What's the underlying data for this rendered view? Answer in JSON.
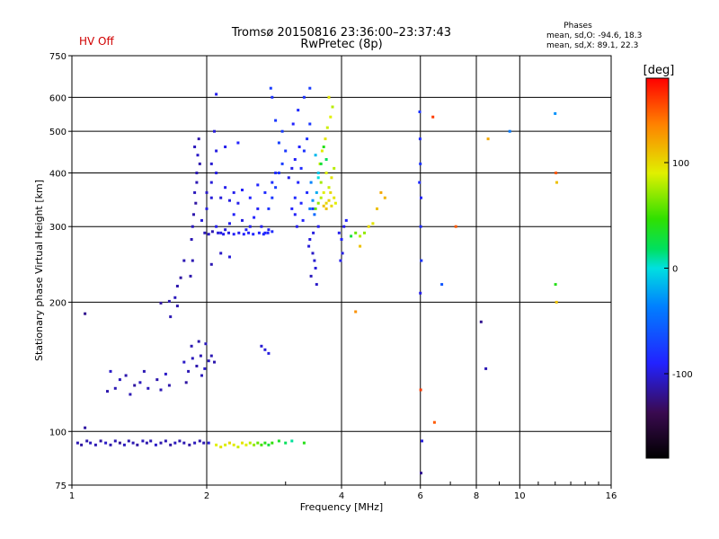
{
  "status": {
    "hv_text": "HV Off",
    "hv_color": "#d00000"
  },
  "header": {
    "title_line1": "Tromsø 20150816 23:36:00–23:37:43",
    "title_line2": "RwPretec (8p)"
  },
  "stats": {
    "heading": "Phases",
    "line_o": "mean, sd,O: -94.6, 18.3",
    "line_x": "mean, sd,X:  89.1, 22.3"
  },
  "colorbar": {
    "title": "[deg]",
    "ticks": [
      {
        "value": 100,
        "label": "100"
      },
      {
        "value": 0,
        "label": "0"
      },
      {
        "value": -100,
        "label": "-100"
      }
    ],
    "range": [
      -180,
      180
    ]
  },
  "chart_data": {
    "type": "scatter",
    "title": "Tromsø 20150816 23:36:00–23:37:43",
    "subtitle": "RwPretec (8p)",
    "xlabel": "Frequency [MHz]",
    "ylabel": "Stationary phase Virtual Height [km]",
    "x_scale": "log",
    "y_scale": "log",
    "xlim": [
      1,
      16
    ],
    "ylim": [
      75,
      750
    ],
    "grid": true,
    "x_ticks": [
      {
        "value": 1,
        "label": "1"
      },
      {
        "value": 2,
        "label": "2"
      },
      {
        "value": 4,
        "label": "4"
      },
      {
        "value": 6,
        "label": "6"
      },
      {
        "value": 8,
        "label": "8"
      },
      {
        "value": 10,
        "label": "10"
      },
      {
        "value": 16,
        "label": "16"
      }
    ],
    "y_ticks": [
      {
        "value": 75,
        "label": "75"
      },
      {
        "value": 100,
        "label": "100"
      },
      {
        "value": 200,
        "label": "200"
      },
      {
        "value": 300,
        "label": "300"
      },
      {
        "value": 400,
        "label": "400"
      },
      {
        "value": 500,
        "label": "500"
      },
      {
        "value": 600,
        "label": "600"
      },
      {
        "value": 750,
        "label": "750"
      }
    ],
    "color_by": "phase [deg]",
    "points": [
      [
        1.03,
        94,
        -110
      ],
      [
        1.05,
        93,
        -115
      ],
      [
        1.08,
        95,
        -112
      ],
      [
        1.1,
        94,
        -108
      ],
      [
        1.13,
        93,
        -110
      ],
      [
        1.16,
        95,
        -115
      ],
      [
        1.19,
        94,
        -105
      ],
      [
        1.22,
        93,
        -112
      ],
      [
        1.25,
        95,
        -110
      ],
      [
        1.28,
        94,
        -118
      ],
      [
        1.31,
        93,
        -108
      ],
      [
        1.34,
        95,
        -112
      ],
      [
        1.37,
        94,
        -110
      ],
      [
        1.4,
        93,
        -115
      ],
      [
        1.44,
        95,
        -108
      ],
      [
        1.47,
        94,
        -112
      ],
      [
        1.5,
        95,
        -110
      ],
      [
        1.54,
        93,
        -105
      ],
      [
        1.58,
        94,
        -112
      ],
      [
        1.62,
        95,
        -110
      ],
      [
        1.66,
        93,
        -115
      ],
      [
        1.7,
        94,
        -108
      ],
      [
        1.74,
        95,
        -112
      ],
      [
        1.78,
        94,
        -110
      ],
      [
        1.83,
        93,
        -115
      ],
      [
        1.88,
        94,
        -108
      ],
      [
        1.93,
        95,
        -112
      ],
      [
        1.97,
        94,
        -110
      ],
      [
        2.02,
        94,
        -100
      ],
      [
        1.07,
        102,
        -115
      ],
      [
        1.07,
        188,
        -120
      ],
      [
        1.22,
        138,
        -105
      ],
      [
        1.25,
        126,
        -110
      ],
      [
        1.28,
        132,
        -108
      ],
      [
        1.32,
        135,
        -112
      ],
      [
        1.35,
        122,
        -110
      ],
      [
        1.38,
        128,
        -115
      ],
      [
        1.42,
        130,
        -108
      ],
      [
        1.45,
        138,
        -110
      ],
      [
        1.2,
        124,
        -112
      ],
      [
        1.48,
        126,
        -108
      ],
      [
        1.55,
        132,
        -112
      ],
      [
        1.58,
        125,
        -110
      ],
      [
        1.62,
        136,
        -105
      ],
      [
        1.65,
        128,
        -112
      ],
      [
        1.58,
        199,
        -115
      ],
      [
        1.65,
        201,
        -110
      ],
      [
        1.7,
        205,
        -108
      ],
      [
        1.72,
        218,
        -112
      ],
      [
        1.75,
        228,
        -115
      ],
      [
        1.78,
        250,
        -110
      ],
      [
        1.66,
        185,
        -110
      ],
      [
        1.72,
        196,
        -112
      ],
      [
        1.78,
        145,
        -105
      ],
      [
        1.82,
        138,
        -110
      ],
      [
        1.86,
        148,
        -108
      ],
      [
        1.9,
        142,
        -112
      ],
      [
        1.94,
        150,
        -110
      ],
      [
        1.98,
        140,
        -105
      ],
      [
        2.02,
        146,
        -108
      ],
      [
        1.85,
        158,
        -110
      ],
      [
        1.92,
        162,
        -112
      ],
      [
        1.99,
        160,
        -108
      ],
      [
        2.05,
        150,
        -110
      ],
      [
        2.08,
        145,
        -112
      ],
      [
        1.8,
        130,
        -115
      ],
      [
        1.95,
        135,
        -108
      ],
      [
        1.85,
        280,
        -110
      ],
      [
        1.87,
        320,
        -112
      ],
      [
        1.88,
        360,
        -108
      ],
      [
        1.9,
        400,
        -110
      ],
      [
        1.91,
        440,
        -105
      ],
      [
        1.92,
        480,
        -112
      ],
      [
        1.86,
        300,
        -108
      ],
      [
        1.89,
        340,
        -115
      ],
      [
        1.9,
        380,
        -110
      ],
      [
        1.93,
        420,
        -112
      ],
      [
        1.88,
        460,
        -108
      ],
      [
        1.86,
        250,
        -110
      ],
      [
        1.84,
        230,
        -112
      ],
      [
        1.95,
        310,
        -100
      ],
      [
        2.0,
        330,
        -98
      ],
      [
        2.05,
        350,
        -100
      ],
      [
        2.1,
        300,
        -95
      ],
      [
        2.15,
        290,
        -98
      ],
      [
        2.2,
        295,
        -100
      ],
      [
        2.25,
        305,
        -95
      ],
      [
        2.3,
        320,
        -92
      ],
      [
        2.35,
        340,
        -95
      ],
      [
        2.4,
        310,
        -98
      ],
      [
        2.45,
        295,
        -92
      ],
      [
        2.5,
        300,
        -95
      ],
      [
        2.55,
        315,
        -90
      ],
      [
        2.6,
        330,
        -92
      ],
      [
        2.65,
        300,
        -95
      ],
      [
        2.7,
        290,
        -90
      ],
      [
        2.75,
        295,
        -92
      ],
      [
        2.0,
        360,
        -105
      ],
      [
        2.05,
        380,
        -100
      ],
      [
        2.1,
        400,
        -98
      ],
      [
        2.15,
        350,
        -100
      ],
      [
        2.2,
        370,
        -95
      ],
      [
        2.25,
        345,
        -98
      ],
      [
        2.3,
        360,
        -95
      ],
      [
        2.4,
        365,
        -92
      ],
      [
        2.5,
        350,
        -90
      ],
      [
        2.6,
        375,
        -88
      ],
      [
        2.7,
        360,
        -85
      ],
      [
        2.8,
        380,
        -82
      ],
      [
        2.85,
        400,
        -85
      ],
      [
        1.98,
        290,
        -108
      ],
      [
        2.02,
        288,
        -105
      ],
      [
        2.06,
        292,
        -110
      ],
      [
        2.12,
        290,
        -100
      ],
      [
        2.18,
        288,
        -95
      ],
      [
        2.24,
        290,
        -98
      ],
      [
        2.3,
        288,
        -92
      ],
      [
        2.36,
        290,
        -95
      ],
      [
        2.42,
        288,
        -90
      ],
      [
        2.48,
        290,
        -92
      ],
      [
        2.54,
        288,
        -88
      ],
      [
        2.62,
        290,
        -90
      ],
      [
        2.68,
        288,
        -85
      ],
      [
        2.74,
        290,
        -88
      ],
      [
        2.8,
        292,
        -85
      ],
      [
        2.05,
        420,
        -102
      ],
      [
        2.1,
        450,
        -98
      ],
      [
        2.2,
        460,
        -95
      ],
      [
        2.08,
        500,
        -100
      ],
      [
        2.15,
        260,
        -105
      ],
      [
        2.25,
        255,
        -100
      ],
      [
        2.05,
        245,
        -110
      ],
      [
        2.1,
        610,
        -95
      ],
      [
        2.35,
        470,
        -90
      ],
      [
        2.75,
        330,
        -80
      ],
      [
        2.8,
        350,
        -78
      ],
      [
        2.85,
        370,
        -75
      ],
      [
        2.9,
        400,
        -80
      ],
      [
        2.95,
        420,
        -75
      ],
      [
        3.0,
        450,
        -78
      ],
      [
        2.9,
        470,
        -72
      ],
      [
        2.95,
        500,
        -75
      ],
      [
        2.85,
        530,
        -78
      ],
      [
        2.8,
        600,
        -80
      ],
      [
        2.78,
        630,
        -75
      ],
      [
        3.1,
        330,
        -90
      ],
      [
        3.15,
        350,
        -85
      ],
      [
        3.2,
        380,
        -88
      ],
      [
        3.25,
        410,
        -85
      ],
      [
        3.3,
        450,
        -80
      ],
      [
        3.35,
        480,
        -82
      ],
      [
        3.4,
        520,
        -78
      ],
      [
        3.2,
        560,
        -85
      ],
      [
        3.3,
        600,
        -80
      ],
      [
        3.4,
        630,
        -75
      ],
      [
        3.15,
        320,
        -92
      ],
      [
        3.25,
        340,
        -88
      ],
      [
        3.35,
        360,
        -85
      ],
      [
        3.45,
        330,
        -80
      ],
      [
        3.1,
        410,
        -95
      ],
      [
        3.15,
        430,
        -92
      ],
      [
        3.22,
        460,
        -90
      ],
      [
        3.05,
        390,
        -95
      ],
      [
        3.12,
        520,
        -90
      ],
      [
        3.18,
        300,
        -95
      ],
      [
        3.28,
        310,
        -90
      ],
      [
        3.4,
        280,
        -100
      ],
      [
        3.45,
        260,
        -105
      ],
      [
        3.5,
        240,
        -100
      ],
      [
        3.42,
        230,
        -108
      ],
      [
        3.48,
        250,
        -102
      ],
      [
        3.52,
        220,
        -105
      ],
      [
        3.38,
        270,
        -100
      ],
      [
        3.46,
        290,
        -98
      ],
      [
        3.55,
        300,
        -95
      ],
      [
        3.5,
        330,
        60
      ],
      [
        3.55,
        340,
        70
      ],
      [
        3.6,
        350,
        80
      ],
      [
        3.65,
        360,
        90
      ],
      [
        3.7,
        340,
        100
      ],
      [
        3.75,
        370,
        85
      ],
      [
        3.8,
        390,
        95
      ],
      [
        3.85,
        410,
        80
      ],
      [
        3.6,
        380,
        75
      ],
      [
        3.7,
        400,
        90
      ],
      [
        3.58,
        420,
        88
      ],
      [
        3.62,
        450,
        92
      ],
      [
        3.68,
        480,
        95
      ],
      [
        3.72,
        510,
        85
      ],
      [
        3.78,
        540,
        90
      ],
      [
        3.82,
        570,
        80
      ],
      [
        3.75,
        600,
        95
      ],
      [
        3.65,
        460,
        40
      ],
      [
        3.7,
        430,
        20
      ],
      [
        3.55,
        390,
        0
      ],
      [
        3.4,
        330,
        -40
      ],
      [
        3.45,
        345,
        -30
      ],
      [
        3.52,
        360,
        -20
      ],
      [
        3.48,
        320,
        -50
      ],
      [
        3.55,
        400,
        -10
      ],
      [
        3.6,
        420,
        30
      ],
      [
        3.42,
        380,
        -35
      ],
      [
        3.5,
        440,
        -15
      ],
      [
        3.7,
        330,
        110
      ],
      [
        3.75,
        345,
        105
      ],
      [
        3.8,
        335,
        100
      ],
      [
        3.85,
        350,
        95
      ],
      [
        3.65,
        335,
        110
      ],
      [
        3.78,
        360,
        100
      ],
      [
        3.88,
        340,
        90
      ],
      [
        2.7,
        155,
        -100
      ],
      [
        2.75,
        152,
        -98
      ],
      [
        2.65,
        158,
        -102
      ],
      [
        2.1,
        93,
        90
      ],
      [
        2.15,
        92,
        95
      ],
      [
        2.2,
        93,
        88
      ],
      [
        2.25,
        94,
        100
      ],
      [
        2.3,
        93,
        92
      ],
      [
        2.35,
        92,
        85
      ],
      [
        2.4,
        94,
        95
      ],
      [
        2.45,
        93,
        90
      ],
      [
        2.5,
        94,
        80
      ],
      [
        2.55,
        93,
        70
      ],
      [
        2.6,
        94,
        60
      ],
      [
        2.65,
        93,
        50
      ],
      [
        2.7,
        94,
        40
      ],
      [
        2.75,
        93,
        30
      ],
      [
        2.8,
        94,
        45
      ],
      [
        2.9,
        95,
        35
      ],
      [
        3.0,
        94,
        20
      ],
      [
        3.1,
        95,
        10
      ],
      [
        3.3,
        94,
        40
      ],
      [
        3.95,
        290,
        -95
      ],
      [
        4.0,
        280,
        -90
      ],
      [
        4.05,
        300,
        -95
      ],
      [
        4.02,
        260,
        -98
      ],
      [
        3.98,
        250,
        -95
      ],
      [
        4.1,
        310,
        -90
      ],
      [
        4.2,
        285,
        30
      ],
      [
        4.3,
        290,
        60
      ],
      [
        4.4,
        285,
        80
      ],
      [
        4.5,
        290,
        70
      ],
      [
        4.4,
        270,
        110
      ],
      [
        4.3,
        190,
        130
      ],
      [
        4.6,
        300,
        100
      ],
      [
        4.7,
        305,
        95
      ],
      [
        4.8,
        330,
        110
      ],
      [
        4.9,
        360,
        120
      ],
      [
        5.0,
        350,
        115
      ],
      [
        5.98,
        555,
        -80
      ],
      [
        5.99,
        480,
        -85
      ],
      [
        6.0,
        420,
        -80
      ],
      [
        6.02,
        350,
        -90
      ],
      [
        6.01,
        300,
        -85
      ],
      [
        6.03,
        250,
        -80
      ],
      [
        6.0,
        210,
        -95
      ],
      [
        6.01,
        125,
        160
      ],
      [
        6.02,
        80,
        -120
      ],
      [
        6.05,
        95,
        -100
      ],
      [
        5.97,
        380,
        -85
      ],
      [
        6.4,
        540,
        160
      ],
      [
        6.45,
        105,
        150
      ],
      [
        6.7,
        220,
        -60
      ],
      [
        7.2,
        300,
        150
      ],
      [
        8.2,
        180,
        -120
      ],
      [
        8.4,
        140,
        -110
      ],
      [
        8.5,
        480,
        120
      ],
      [
        9.5,
        500,
        -40
      ],
      [
        12.0,
        550,
        -30
      ],
      [
        12.05,
        400,
        150
      ],
      [
        12.1,
        380,
        110
      ],
      [
        12.02,
        220,
        40
      ],
      [
        12.08,
        200,
        110
      ]
    ]
  }
}
